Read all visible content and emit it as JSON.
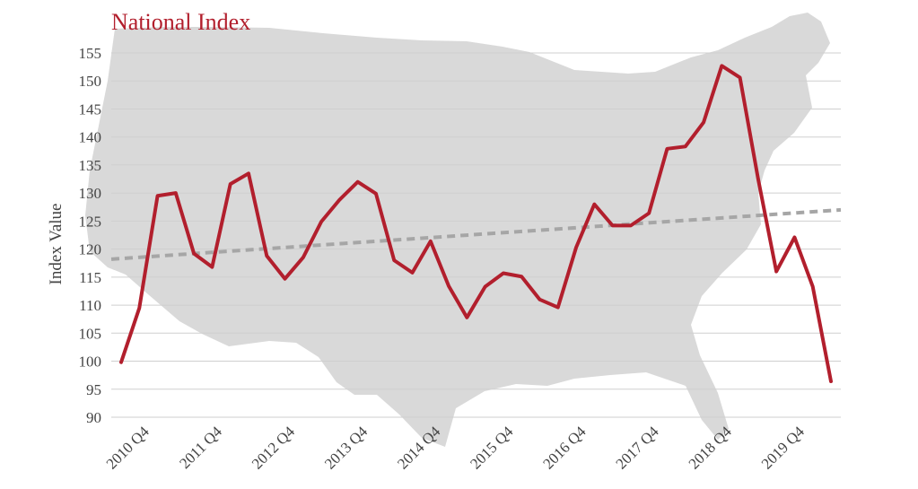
{
  "chart_data": {
    "type": "line",
    "title": "National Index",
    "ylabel": "Index Value",
    "xlabel": "",
    "ylim": [
      90,
      155
    ],
    "yticks": [
      90,
      95,
      100,
      105,
      110,
      115,
      120,
      125,
      130,
      135,
      140,
      145,
      150,
      155
    ],
    "xtick_labels": [
      "2010 Q4",
      "2011 Q4",
      "2012 Q4",
      "2013 Q4",
      "2014 Q4",
      "2015 Q4",
      "2016 Q4",
      "2017 Q4",
      "2018 Q4",
      "2019 Q4"
    ],
    "grid": true,
    "background_image": "us-map-silhouette",
    "series": [
      {
        "values": [
          99.8,
          109.5,
          129.5,
          130.0,
          119.2,
          116.8,
          131.6,
          133.5,
          118.8,
          114.7,
          118.5,
          124.9,
          128.8,
          132.0,
          129.9,
          118.0,
          115.8,
          121.4,
          113.4,
          107.8,
          113.3,
          115.7,
          115.1,
          111.0,
          109.6,
          120.3,
          128.0,
          124.2,
          124.2,
          126.4,
          137.9,
          138.3,
          142.6,
          152.7,
          150.6,
          132.5,
          116.0,
          122.1,
          113.3,
          96.4
        ],
        "color": "#b21f2d"
      }
    ],
    "trendline": {
      "start": 118.2,
      "end": 127.0,
      "color": "#a6a6a6",
      "style": "dashed"
    }
  }
}
